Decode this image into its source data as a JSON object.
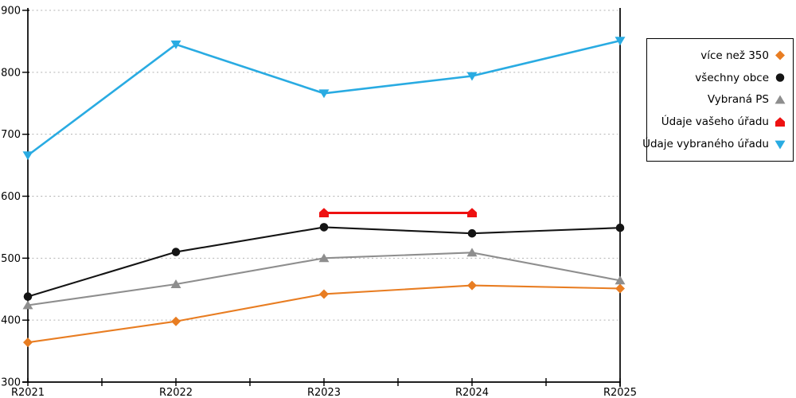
{
  "chart_data": {
    "type": "line",
    "categories": [
      "R2021",
      "R2022",
      "R2023",
      "R2024",
      "R2025"
    ],
    "series": [
      {
        "name": "více než 350",
        "color": "#e87d22",
        "marker": "diamond",
        "values": [
          364,
          398,
          442,
          456,
          451
        ]
      },
      {
        "name": "všechny obce",
        "color": "#141414",
        "marker": "circle",
        "values": [
          438,
          510,
          550,
          540,
          549
        ]
      },
      {
        "name": "Vybraná PS",
        "color": "#8e8e8e",
        "marker": "triangle-up",
        "values": [
          424,
          458,
          500,
          509,
          464
        ]
      },
      {
        "name": "Údaje vašeho úřadu",
        "color": "#ee1111",
        "marker": "pentagon",
        "values": [
          null,
          null,
          573,
          573,
          null
        ]
      },
      {
        "name": "Údaje vybraného úřadu",
        "color": "#29abe2",
        "marker": "triangle-down",
        "values": [
          666,
          845,
          766,
          794,
          851
        ]
      }
    ],
    "title": "",
    "xlabel": "",
    "ylabel": "",
    "ylim": [
      300,
      900
    ],
    "yticks": [
      300,
      400,
      500,
      600,
      700,
      800,
      900
    ],
    "grid": "horizontal-dashed",
    "gridline_color": "#b3b3b3",
    "axis_color": "#000000",
    "legend_position": "top-right"
  }
}
